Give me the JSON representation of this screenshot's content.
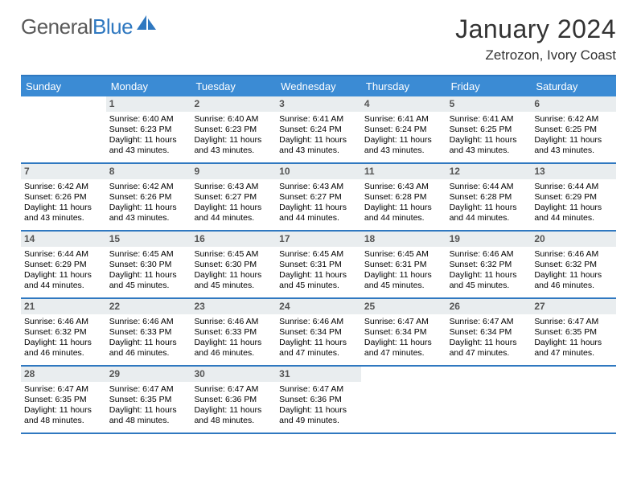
{
  "brand": {
    "general": "General",
    "blue": "Blue"
  },
  "title": "January 2024",
  "location": "Zetrozon, Ivory Coast",
  "colors": {
    "accent": "#3b8bd4",
    "accent_border": "#2f78c0",
    "daynum_bg": "#e9edef",
    "logo_gray": "#5a5a5a"
  },
  "daysOfWeek": [
    "Sunday",
    "Monday",
    "Tuesday",
    "Wednesday",
    "Thursday",
    "Friday",
    "Saturday"
  ],
  "weeks": [
    [
      null,
      {
        "n": "1",
        "sr": "6:40 AM",
        "ss": "6:23 PM",
        "dl": "11 hours and 43 minutes."
      },
      {
        "n": "2",
        "sr": "6:40 AM",
        "ss": "6:23 PM",
        "dl": "11 hours and 43 minutes."
      },
      {
        "n": "3",
        "sr": "6:41 AM",
        "ss": "6:24 PM",
        "dl": "11 hours and 43 minutes."
      },
      {
        "n": "4",
        "sr": "6:41 AM",
        "ss": "6:24 PM",
        "dl": "11 hours and 43 minutes."
      },
      {
        "n": "5",
        "sr": "6:41 AM",
        "ss": "6:25 PM",
        "dl": "11 hours and 43 minutes."
      },
      {
        "n": "6",
        "sr": "6:42 AM",
        "ss": "6:25 PM",
        "dl": "11 hours and 43 minutes."
      }
    ],
    [
      {
        "n": "7",
        "sr": "6:42 AM",
        "ss": "6:26 PM",
        "dl": "11 hours and 43 minutes."
      },
      {
        "n": "8",
        "sr": "6:42 AM",
        "ss": "6:26 PM",
        "dl": "11 hours and 43 minutes."
      },
      {
        "n": "9",
        "sr": "6:43 AM",
        "ss": "6:27 PM",
        "dl": "11 hours and 44 minutes."
      },
      {
        "n": "10",
        "sr": "6:43 AM",
        "ss": "6:27 PM",
        "dl": "11 hours and 44 minutes."
      },
      {
        "n": "11",
        "sr": "6:43 AM",
        "ss": "6:28 PM",
        "dl": "11 hours and 44 minutes."
      },
      {
        "n": "12",
        "sr": "6:44 AM",
        "ss": "6:28 PM",
        "dl": "11 hours and 44 minutes."
      },
      {
        "n": "13",
        "sr": "6:44 AM",
        "ss": "6:29 PM",
        "dl": "11 hours and 44 minutes."
      }
    ],
    [
      {
        "n": "14",
        "sr": "6:44 AM",
        "ss": "6:29 PM",
        "dl": "11 hours and 44 minutes."
      },
      {
        "n": "15",
        "sr": "6:45 AM",
        "ss": "6:30 PM",
        "dl": "11 hours and 45 minutes."
      },
      {
        "n": "16",
        "sr": "6:45 AM",
        "ss": "6:30 PM",
        "dl": "11 hours and 45 minutes."
      },
      {
        "n": "17",
        "sr": "6:45 AM",
        "ss": "6:31 PM",
        "dl": "11 hours and 45 minutes."
      },
      {
        "n": "18",
        "sr": "6:45 AM",
        "ss": "6:31 PM",
        "dl": "11 hours and 45 minutes."
      },
      {
        "n": "19",
        "sr": "6:46 AM",
        "ss": "6:32 PM",
        "dl": "11 hours and 45 minutes."
      },
      {
        "n": "20",
        "sr": "6:46 AM",
        "ss": "6:32 PM",
        "dl": "11 hours and 46 minutes."
      }
    ],
    [
      {
        "n": "21",
        "sr": "6:46 AM",
        "ss": "6:32 PM",
        "dl": "11 hours and 46 minutes."
      },
      {
        "n": "22",
        "sr": "6:46 AM",
        "ss": "6:33 PM",
        "dl": "11 hours and 46 minutes."
      },
      {
        "n": "23",
        "sr": "6:46 AM",
        "ss": "6:33 PM",
        "dl": "11 hours and 46 minutes."
      },
      {
        "n": "24",
        "sr": "6:46 AM",
        "ss": "6:34 PM",
        "dl": "11 hours and 47 minutes."
      },
      {
        "n": "25",
        "sr": "6:47 AM",
        "ss": "6:34 PM",
        "dl": "11 hours and 47 minutes."
      },
      {
        "n": "26",
        "sr": "6:47 AM",
        "ss": "6:34 PM",
        "dl": "11 hours and 47 minutes."
      },
      {
        "n": "27",
        "sr": "6:47 AM",
        "ss": "6:35 PM",
        "dl": "11 hours and 47 minutes."
      }
    ],
    [
      {
        "n": "28",
        "sr": "6:47 AM",
        "ss": "6:35 PM",
        "dl": "11 hours and 48 minutes."
      },
      {
        "n": "29",
        "sr": "6:47 AM",
        "ss": "6:35 PM",
        "dl": "11 hours and 48 minutes."
      },
      {
        "n": "30",
        "sr": "6:47 AM",
        "ss": "6:36 PM",
        "dl": "11 hours and 48 minutes."
      },
      {
        "n": "31",
        "sr": "6:47 AM",
        "ss": "6:36 PM",
        "dl": "11 hours and 49 minutes."
      },
      null,
      null,
      null
    ]
  ],
  "labels": {
    "sunrise": "Sunrise:",
    "sunset": "Sunset:",
    "daylight": "Daylight:"
  }
}
